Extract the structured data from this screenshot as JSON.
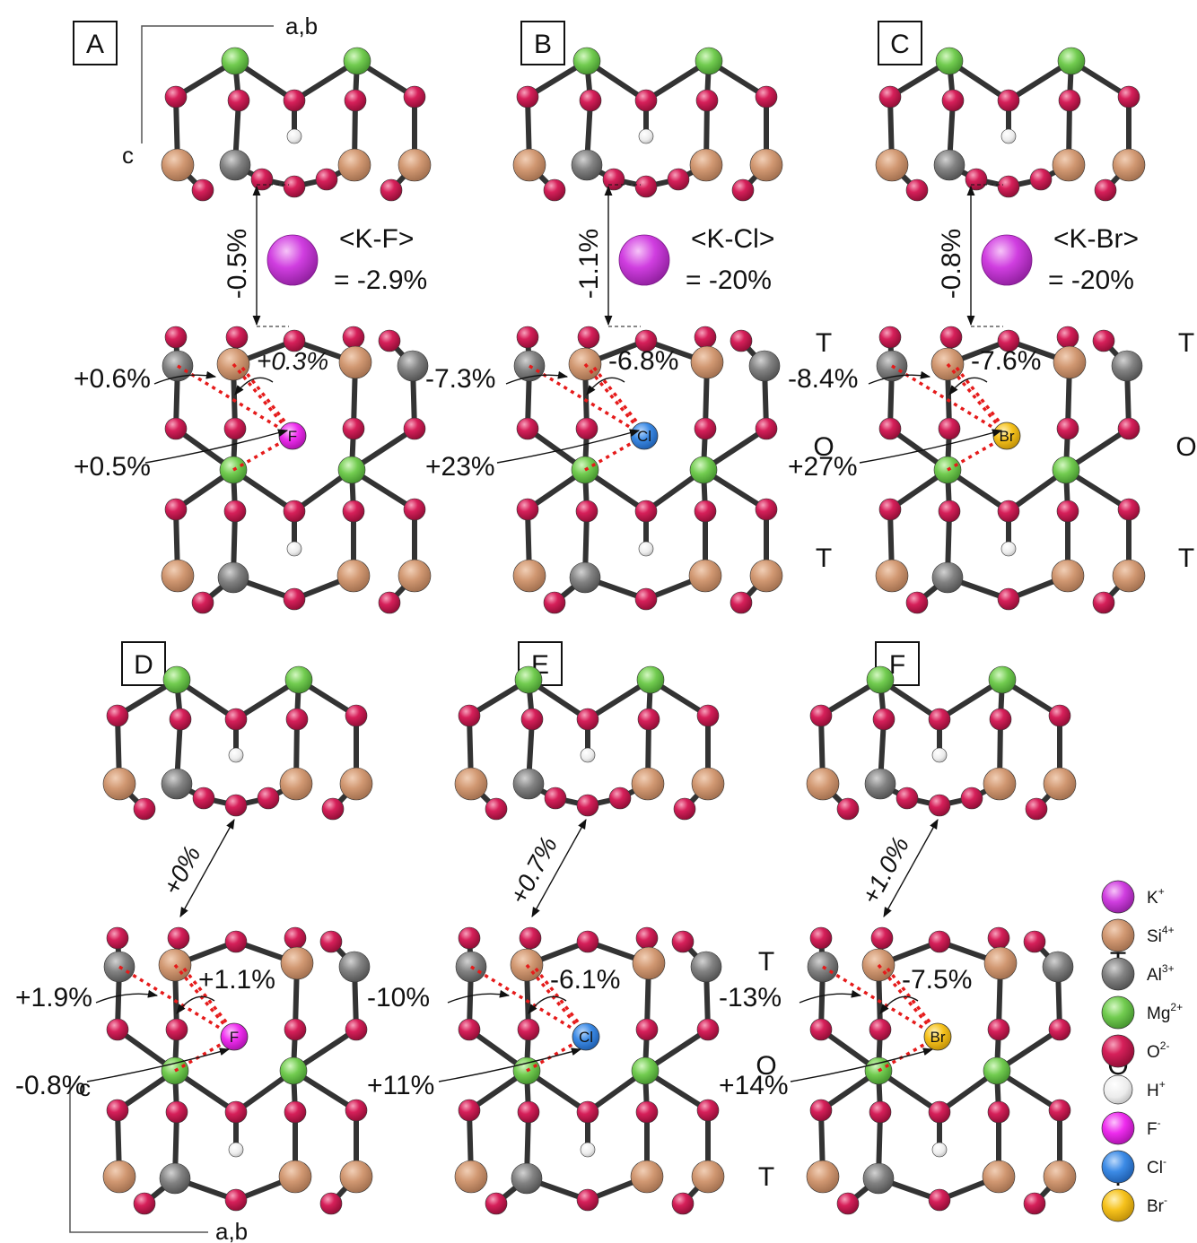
{
  "panels": [
    {
      "letter": "A",
      "layer_labels": [
        "",
        "",
        ""
      ],
      "interlayer": "-0.5%",
      "summary_line1": "<K-F>",
      "summary_line2": "= -2.9%",
      "annotations": [
        "+0.6%",
        "+0.3%",
        "+0.5%"
      ],
      "ion": "F",
      "ion_color": "#ee2cee",
      "has_k": true
    },
    {
      "letter": "B",
      "layer_labels": [
        "T",
        "O",
        "T"
      ],
      "interlayer": "-1.1%",
      "summary_line1": "<K-Cl>",
      "summary_line2": "= -20%",
      "annotations": [
        "-7.3%",
        "-6.8%",
        "+23%"
      ],
      "ion": "Cl",
      "ion_color": "#3c8be6",
      "has_k": true
    },
    {
      "letter": "C",
      "layer_labels": [
        "T",
        "O",
        "T"
      ],
      "interlayer": "-0.8%",
      "summary_line1": "<K-Br>",
      "summary_line2": "= -20%",
      "annotations": [
        "-8.4%",
        "-7.6%",
        "+27%"
      ],
      "ion": "Br",
      "ion_color": "#f6c21c",
      "has_k": true
    },
    {
      "letter": "D",
      "layer_labels": [
        "",
        "",
        ""
      ],
      "interlayer": "+0%",
      "summary_line1": "",
      "summary_line2": "",
      "annotations": [
        "+1.9%",
        "+1.1%",
        "-0.8%"
      ],
      "ion": "F",
      "ion_color": "#ee2cee",
      "has_k": false
    },
    {
      "letter": "E",
      "layer_labels": [
        "T",
        "O",
        "T"
      ],
      "interlayer": "+0.7%",
      "summary_line1": "",
      "summary_line2": "",
      "annotations": [
        "-10%",
        "-6.1%",
        "+11%"
      ],
      "ion": "Cl",
      "ion_color": "#3c8be6",
      "has_k": false
    },
    {
      "letter": "F",
      "layer_labels": [
        "T",
        "O",
        "T"
      ],
      "interlayer": "+1.0%",
      "summary_line1": "",
      "summary_line2": "",
      "annotations": [
        "-13%",
        "-7.5%",
        "+14%"
      ],
      "ion": "Br",
      "ion_color": "#f6c21c",
      "has_k": false
    }
  ],
  "axes": {
    "top": {
      "horizontal": "a,b",
      "vertical": "c"
    },
    "bottom": {
      "horizontal": "a,b",
      "vertical": "c"
    }
  },
  "legend": [
    {
      "symbol": "K",
      "charge": "+",
      "color": "#d03ee0",
      "icon": "potassium-ion"
    },
    {
      "symbol": "Si",
      "charge": "4+",
      "color": "#d19872",
      "icon": "silicon-ion"
    },
    {
      "symbol": "Al",
      "charge": "3+",
      "color": "#838383",
      "icon": "aluminium-ion"
    },
    {
      "symbol": "Mg",
      "charge": "2+",
      "color": "#72cc50",
      "icon": "magnesium-ion"
    },
    {
      "symbol": "O",
      "charge": "2-",
      "color": "#d6205a",
      "icon": "oxygen-ion"
    },
    {
      "symbol": "H",
      "charge": "+",
      "color": "#eeeeee",
      "icon": "hydrogen-ion"
    },
    {
      "symbol": "F",
      "charge": "-",
      "color": "#ee2cee",
      "icon": "fluoride-ion"
    },
    {
      "symbol": "Cl",
      "charge": "-",
      "color": "#3c8be6",
      "icon": "chloride-ion"
    },
    {
      "symbol": "Br",
      "charge": "-",
      "color": "#f6c21c",
      "icon": "bromide-ion"
    }
  ]
}
